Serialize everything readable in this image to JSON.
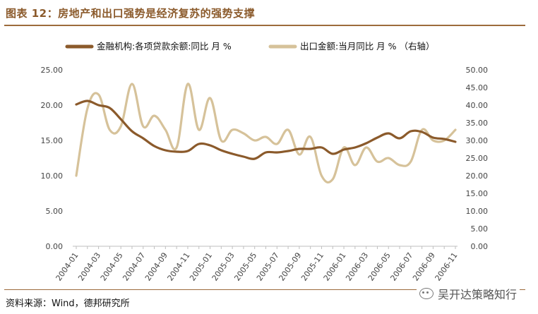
{
  "title": "图表 12：房地产和出口强势是经济复苏的强势支撑",
  "source": "资料来源：Wind，德邦研究所",
  "watermark": "吴开达策略知行",
  "colors": {
    "series1": "#8b5a2b",
    "series2": "#d6c29a",
    "title": "#8b5a2b",
    "rule": "#9c6b3c"
  },
  "chart_data": {
    "type": "line",
    "title": "",
    "legend_position": "top",
    "x_tick_labels": [
      "2004-01",
      "2004-03",
      "2004-05",
      "2004-07",
      "2004-09",
      "2004-11",
      "2005-01",
      "2005-03",
      "2005-05",
      "2005-07",
      "2005-09",
      "2005-11",
      "2006-01",
      "2006-03",
      "2006-05",
      "2006-07",
      "2006-09",
      "2006-11"
    ],
    "x": [
      "2004-01",
      "2004-02",
      "2004-03",
      "2004-04",
      "2004-05",
      "2004-06",
      "2004-07",
      "2004-08",
      "2004-09",
      "2004-10",
      "2004-11",
      "2004-12",
      "2005-01",
      "2005-02",
      "2005-03",
      "2005-04",
      "2005-05",
      "2005-06",
      "2005-07",
      "2005-08",
      "2005-09",
      "2005-10",
      "2005-11",
      "2005-12",
      "2006-01",
      "2006-02",
      "2006-03",
      "2006-04",
      "2006-05",
      "2006-06",
      "2006-07",
      "2006-08",
      "2006-09",
      "2006-10",
      "2006-11"
    ],
    "y_left": {
      "ylim": [
        0,
        25
      ],
      "ticks": [
        "0.00",
        "5.00",
        "10.00",
        "15.00",
        "20.00",
        "25.00"
      ]
    },
    "y_right": {
      "ylim": [
        0,
        50
      ],
      "ticks": [
        "0.00",
        "5.00",
        "10.00",
        "15.00",
        "20.00",
        "25.00",
        "30.00",
        "35.00",
        "40.00",
        "45.00",
        "50.00"
      ]
    },
    "grid": false,
    "series": [
      {
        "name": "金融机构:各项贷款余额:同比 月 %",
        "axis": "left",
        "values": [
          20.1,
          20.6,
          20.0,
          19.6,
          18.0,
          16.3,
          15.3,
          14.2,
          13.6,
          13.4,
          13.5,
          14.5,
          14.3,
          13.6,
          13.1,
          12.7,
          12.4,
          13.3,
          13.3,
          13.5,
          13.8,
          13.8,
          14.0,
          13.1,
          13.7,
          14.0,
          14.6,
          15.4,
          16.0,
          15.3,
          16.3,
          16.2,
          15.4,
          15.2,
          14.8
        ]
      },
      {
        "name": "出口金额:当月同比 月 % （右轴）",
        "axis": "right",
        "values": [
          20.0,
          39.0,
          43.0,
          33.0,
          34.0,
          46.0,
          34.0,
          37.0,
          33.0,
          28.0,
          46.0,
          33.0,
          42.0,
          30.0,
          33.0,
          32.0,
          30.0,
          31.0,
          29.0,
          33.0,
          26.0,
          31.0,
          20.0,
          19.0,
          28.0,
          23.0,
          28.0,
          24.0,
          25.0,
          23.0,
          24.0,
          33.0,
          30.0,
          30.0,
          33.0
        ]
      }
    ]
  }
}
